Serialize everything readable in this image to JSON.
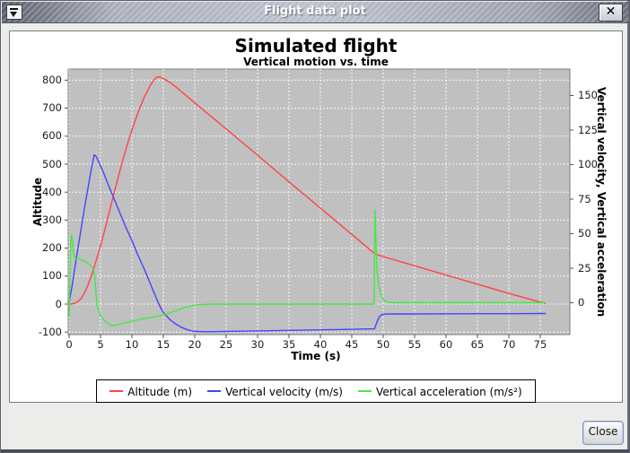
{
  "window": {
    "title": "Flight data plot",
    "close_glyph": "✕"
  },
  "footer": {
    "close_label": "Close"
  },
  "chart_data": {
    "type": "line",
    "title": "Simulated flight",
    "subtitle": "Vertical motion vs. time",
    "xlabel": "Time (s)",
    "ylabel_left": "Altitude",
    "ylabel_right": "Vertical velocity, Vertical acceleration",
    "x_ticks": [
      0,
      5,
      10,
      15,
      20,
      25,
      30,
      35,
      40,
      45,
      50,
      55,
      60,
      65,
      70,
      75
    ],
    "left_ticks": [
      -100,
      0,
      100,
      200,
      300,
      400,
      500,
      600,
      700,
      800
    ],
    "right_ticks": [
      0,
      25,
      50,
      75,
      100,
      125,
      150
    ],
    "xlim": [
      -1.3,
      79.7
    ],
    "ylim_left": [
      -109,
      840
    ],
    "ylim_right": [
      -23,
      169
    ],
    "grid": true,
    "plot_bg_color": "#c0c0c0",
    "grid_color": "#ffffff",
    "legend_position": "bottom",
    "series": [
      {
        "name": "Altitude (m)",
        "color": "#ff4444",
        "axis": "left",
        "points": [
          [
            0,
            0
          ],
          [
            0.5,
            1
          ],
          [
            1,
            4
          ],
          [
            1.5,
            11
          ],
          [
            2,
            22
          ],
          [
            2.5,
            42
          ],
          [
            3,
            68
          ],
          [
            3.5,
            98
          ],
          [
            4,
            133
          ],
          [
            4.5,
            170
          ],
          [
            5,
            207
          ],
          [
            5.5,
            250
          ],
          [
            6,
            293
          ],
          [
            7,
            383
          ],
          [
            8,
            470
          ],
          [
            9,
            550
          ],
          [
            10,
            622
          ],
          [
            11,
            686
          ],
          [
            12,
            741
          ],
          [
            13,
            785
          ],
          [
            13.5,
            801
          ],
          [
            14,
            812
          ],
          [
            14.5,
            811
          ],
          [
            15,
            806
          ],
          [
            16,
            793
          ],
          [
            17,
            776
          ],
          [
            18,
            757
          ],
          [
            19,
            738
          ],
          [
            20,
            719
          ],
          [
            25,
            626
          ],
          [
            30,
            532
          ],
          [
            35,
            437
          ],
          [
            40,
            343
          ],
          [
            45,
            249
          ],
          [
            48.7,
            179
          ],
          [
            50,
            170
          ],
          [
            55,
            137
          ],
          [
            60,
            104
          ],
          [
            65,
            71
          ],
          [
            70,
            38
          ],
          [
            75,
            7
          ],
          [
            75.9,
            2
          ]
        ]
      },
      {
        "name": "Vertical velocity (m/s)",
        "color": "#4444ff",
        "axis": "right",
        "points": [
          [
            0,
            0
          ],
          [
            0.5,
            13
          ],
          [
            1,
            28
          ],
          [
            1.5,
            42
          ],
          [
            2,
            56
          ],
          [
            2.5,
            70
          ],
          [
            3,
            83
          ],
          [
            3.5,
            96
          ],
          [
            4,
            107
          ],
          [
            4.3,
            106
          ],
          [
            4.6,
            103
          ],
          [
            5,
            99
          ],
          [
            5.5,
            94
          ],
          [
            6,
            88
          ],
          [
            7,
            77
          ],
          [
            8,
            66
          ],
          [
            9,
            55
          ],
          [
            10,
            45
          ],
          [
            11,
            34
          ],
          [
            12,
            24
          ],
          [
            13,
            13
          ],
          [
            14,
            2
          ],
          [
            14.5,
            -3
          ],
          [
            15,
            -7
          ],
          [
            16,
            -12
          ],
          [
            17,
            -15.5
          ],
          [
            18,
            -18
          ],
          [
            19,
            -19.8
          ],
          [
            20,
            -20.8
          ],
          [
            22,
            -21
          ],
          [
            25,
            -20.8
          ],
          [
            30,
            -20.4
          ],
          [
            35,
            -20
          ],
          [
            40,
            -19.6
          ],
          [
            45,
            -19.2
          ],
          [
            48.6,
            -18.9
          ],
          [
            49,
            -14
          ],
          [
            49.4,
            -10
          ],
          [
            49.8,
            -8.6
          ],
          [
            50.5,
            -8.2
          ],
          [
            52,
            -8.1
          ],
          [
            55,
            -8.1
          ],
          [
            60,
            -8
          ],
          [
            65,
            -7.9
          ],
          [
            70,
            -7.9
          ],
          [
            75.9,
            -7.8
          ]
        ]
      },
      {
        "name": "Vertical acceleration (m/s²)",
        "color": "#44e844",
        "axis": "right",
        "points": [
          [
            0,
            -9.8
          ],
          [
            0.1,
            10
          ],
          [
            0.25,
            45
          ],
          [
            0.35,
            49
          ],
          [
            0.5,
            46
          ],
          [
            0.65,
            39
          ],
          [
            0.8,
            34
          ],
          [
            1,
            31.5
          ],
          [
            1.3,
            32
          ],
          [
            1.6,
            32
          ],
          [
            2,
            31
          ],
          [
            2.5,
            30
          ],
          [
            3,
            28.5
          ],
          [
            3.5,
            26.5
          ],
          [
            3.9,
            24
          ],
          [
            4.1,
            18
          ],
          [
            4.3,
            6
          ],
          [
            4.5,
            -3
          ],
          [
            4.8,
            -7.5
          ],
          [
            5.2,
            -10.5
          ],
          [
            5.7,
            -13
          ],
          [
            6.2,
            -15
          ],
          [
            6.7,
            -16.3
          ],
          [
            7,
            -16.5
          ],
          [
            7.5,
            -16.2
          ],
          [
            8,
            -15.6
          ],
          [
            9,
            -14.4
          ],
          [
            10,
            -13.3
          ],
          [
            11,
            -12.3
          ],
          [
            12,
            -11.4
          ],
          [
            13,
            -10.6
          ],
          [
            14,
            -9.8
          ],
          [
            15,
            -8.8
          ],
          [
            16,
            -7.4
          ],
          [
            17,
            -5.8
          ],
          [
            18,
            -4.1
          ],
          [
            19,
            -2.7
          ],
          [
            20,
            -1.8
          ],
          [
            21,
            -1.3
          ],
          [
            22,
            -1.1
          ],
          [
            25,
            -1
          ],
          [
            30,
            -1
          ],
          [
            35,
            -1
          ],
          [
            40,
            -1
          ],
          [
            45,
            -1
          ],
          [
            48.55,
            -1
          ],
          [
            48.7,
            67
          ],
          [
            48.85,
            45
          ],
          [
            49,
            24
          ],
          [
            49.3,
            12
          ],
          [
            49.7,
            5
          ],
          [
            50.2,
            1.5
          ],
          [
            51,
            0.3
          ],
          [
            52,
            0
          ],
          [
            55,
            0
          ],
          [
            60,
            0
          ],
          [
            65,
            0
          ],
          [
            70,
            0
          ],
          [
            75.9,
            0
          ]
        ]
      }
    ]
  }
}
